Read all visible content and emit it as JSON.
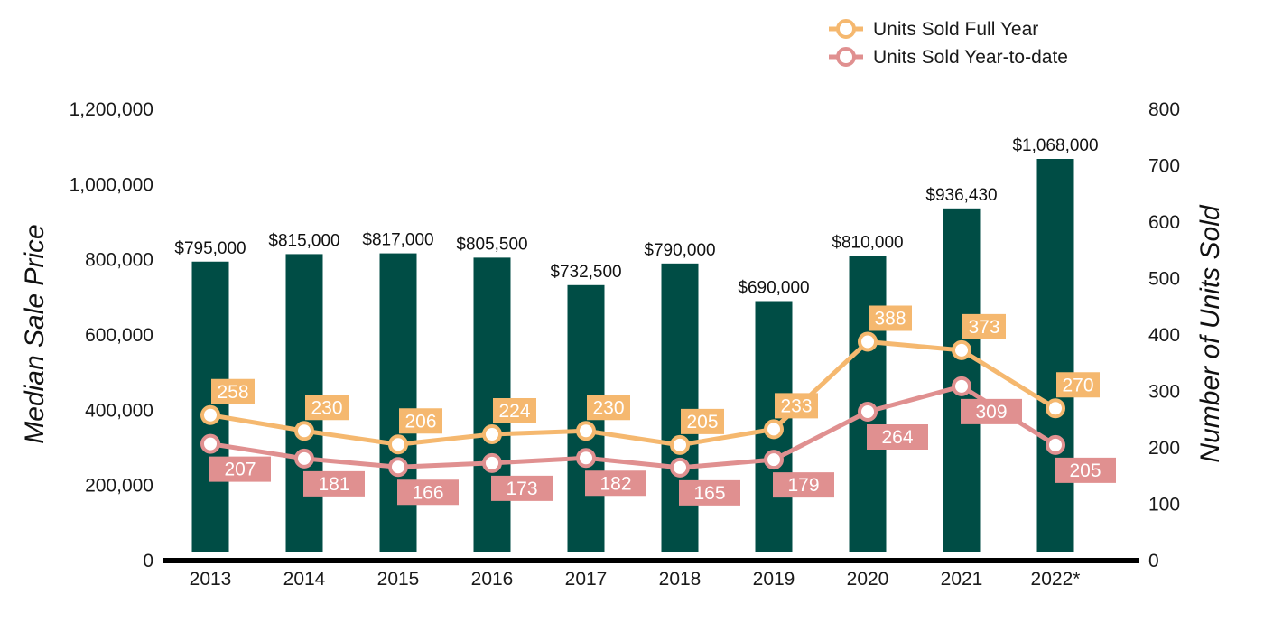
{
  "chart_data": {
    "type": "bar+line",
    "categories": [
      "2013",
      "2014",
      "2015",
      "2016",
      "2017",
      "2018",
      "2019",
      "2020",
      "2021",
      "2022*"
    ],
    "bar_series": {
      "name": "Median Sale Price",
      "values": [
        795000,
        815000,
        817000,
        805500,
        732500,
        790000,
        690000,
        810000,
        936430,
        1068000
      ],
      "labels": [
        "$795,000",
        "$815,000",
        "$817,000",
        "$805,500",
        "$732,500",
        "$790,000",
        "$690,000",
        "$810,000",
        "$936,430",
        "$1,068,000"
      ],
      "color": "#004d45"
    },
    "line_series": [
      {
        "name": "Units Sold Full Year",
        "values": [
          258,
          230,
          206,
          224,
          230,
          205,
          233,
          388,
          373,
          270
        ],
        "color": "#f5b86f"
      },
      {
        "name": "Units Sold Year-to-date",
        "values": [
          207,
          181,
          166,
          173,
          182,
          165,
          179,
          264,
          309,
          205
        ],
        "color": "#e09090"
      }
    ],
    "left_axis": {
      "title": "Median Sale Price",
      "min": 0,
      "max": 1200000,
      "ticks": [
        0,
        200000,
        400000,
        600000,
        800000,
        1000000,
        1200000
      ],
      "tick_labels": [
        "0",
        "200,000",
        "400,000",
        "600,000",
        "800,000",
        "1,000,000",
        "1,200,000"
      ]
    },
    "right_axis": {
      "title": "Number of Units Sold",
      "min": 0,
      "max": 800,
      "ticks": [
        0,
        100,
        200,
        300,
        400,
        500,
        600,
        700,
        800
      ],
      "tick_labels": [
        "0",
        "100",
        "200",
        "300",
        "400",
        "500",
        "600",
        "700",
        "800"
      ]
    },
    "legend_position": "top-right",
    "grid": false
  }
}
